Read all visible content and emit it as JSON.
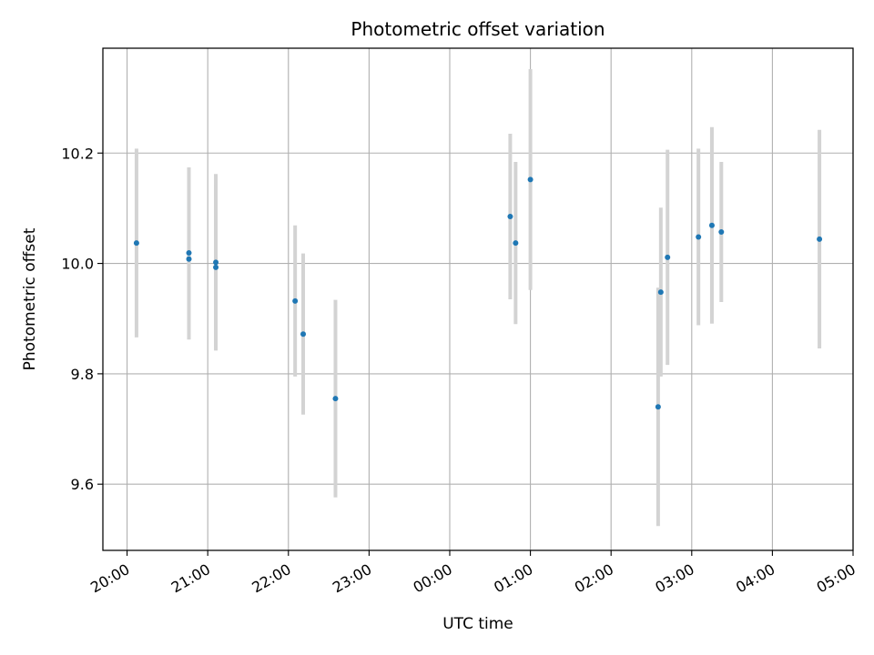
{
  "chart_data": {
    "type": "scatter",
    "title": "Photometric offset variation",
    "xlabel": "UTC time",
    "ylabel": "Photometric offset",
    "x_tick_labels": [
      "20:00",
      "21:00",
      "22:00",
      "23:00",
      "00:00",
      "01:00",
      "02:00",
      "03:00",
      "04:00",
      "05:00"
    ],
    "x_tick_hours": [
      0,
      1,
      2,
      3,
      4,
      5,
      6,
      7,
      8,
      9
    ],
    "xlim_hours": [
      -0.3,
      9.0
    ],
    "y_ticks": [
      9.6,
      9.8,
      10.0,
      10.2
    ],
    "y_tick_labels": [
      "9.6",
      "9.8",
      "10.0",
      "10.2"
    ],
    "ylim": [
      9.48,
      10.39
    ],
    "grid": true,
    "colors": {
      "points": "#1f77b4",
      "errorbars": "#d3d3d3",
      "grid": "#b0b0b0"
    },
    "points": [
      {
        "time": "20:07",
        "y": 10.037,
        "err": 0.171
      },
      {
        "time": "20:46",
        "y": 10.019,
        "err": 0.155
      },
      {
        "time": "20:46",
        "y": 10.008,
        "err": 0.146
      },
      {
        "time": "21:06",
        "y": 10.002,
        "err": 0.16
      },
      {
        "time": "21:06",
        "y": 9.993,
        "err": 0.15
      },
      {
        "time": "22:05",
        "y": 9.932,
        "err": 0.137
      },
      {
        "time": "22:11",
        "y": 9.872,
        "err": 0.146
      },
      {
        "time": "22:35",
        "y": 9.755,
        "err": 0.179
      },
      {
        "time": "00:45",
        "y": 10.085,
        "err": 0.15
      },
      {
        "time": "00:49",
        "y": 10.037,
        "err": 0.147
      },
      {
        "time": "01:00",
        "y": 10.152,
        "err": 0.2
      },
      {
        "time": "02:35",
        "y": 9.74,
        "err": 0.216
      },
      {
        "time": "02:37",
        "y": 9.948,
        "err": 0.153
      },
      {
        "time": "02:42",
        "y": 10.011,
        "err": 0.195
      },
      {
        "time": "03:05",
        "y": 10.048,
        "err": 0.16
      },
      {
        "time": "03:15",
        "y": 10.069,
        "err": 0.178
      },
      {
        "time": "03:22",
        "y": 10.057,
        "err": 0.127
      },
      {
        "time": "04:35",
        "y": 10.044,
        "err": 0.198
      }
    ]
  }
}
